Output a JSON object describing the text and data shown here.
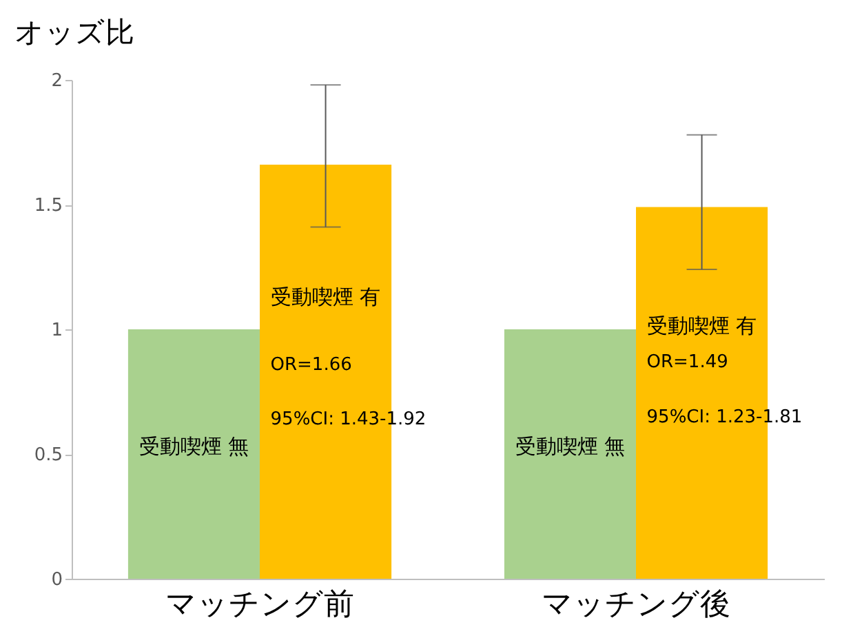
{
  "chart_data": {
    "type": "bar",
    "ylabel": "オッズ比",
    "categories": [
      "マッチング前",
      "マッチング後"
    ],
    "series": [
      {
        "name": "受動喫煙 無",
        "color": "#a9d18e",
        "values": [
          1,
          1
        ]
      },
      {
        "name": "受動喫煙 有",
        "color": "#ffc000",
        "values": [
          1.66,
          1.49
        ],
        "errors": [
          [
            1.41,
            1.98
          ],
          [
            1.24,
            1.78
          ]
        ]
      }
    ],
    "ylim": [
      0,
      2
    ],
    "yticks": [
      0,
      0.5,
      1,
      1.5,
      2
    ],
    "annotations": [
      {
        "text": "OR=1.66",
        "x": "マッチング前",
        "y": 0.86
      },
      {
        "text": "95%CI: 1.43-1.92",
        "x": "マッチング前",
        "y": 0.64
      },
      {
        "text": "OR=1.49",
        "x": "マッチング後",
        "y": 0.87
      },
      {
        "text": "95%CI: 1.23-1.81",
        "x": "マッチング後",
        "y": 0.65
      }
    ]
  }
}
